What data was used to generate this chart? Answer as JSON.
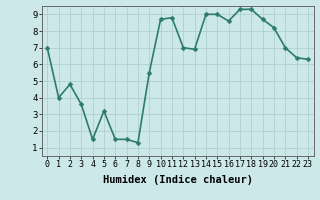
{
  "x": [
    0,
    1,
    2,
    3,
    4,
    5,
    6,
    7,
    8,
    9,
    10,
    11,
    12,
    13,
    14,
    15,
    16,
    17,
    18,
    19,
    20,
    21,
    22,
    23
  ],
  "y": [
    7.0,
    4.0,
    4.8,
    3.6,
    1.5,
    3.2,
    1.5,
    1.5,
    1.3,
    5.5,
    8.7,
    8.8,
    7.0,
    6.9,
    9.0,
    9.0,
    8.6,
    9.3,
    9.3,
    8.7,
    8.2,
    7.0,
    6.4,
    6.3
  ],
  "line_color": "#2d7b6e",
  "marker_color": "#2d7b6e",
  "bg_color": "#cce8e8",
  "grid_color": "#aacccc",
  "xlabel": "Humidex (Indice chaleur)",
  "xlabel_fontsize": 7.5,
  "xlim": [
    -0.5,
    23.5
  ],
  "ylim": [
    0.5,
    9.5
  ],
  "yticks": [
    1,
    2,
    3,
    4,
    5,
    6,
    7,
    8,
    9
  ],
  "xticks": [
    0,
    1,
    2,
    3,
    4,
    5,
    6,
    7,
    8,
    9,
    10,
    11,
    12,
    13,
    14,
    15,
    16,
    17,
    18,
    19,
    20,
    21,
    22,
    23
  ],
  "xtick_labels": [
    "0",
    "1",
    "2",
    "3",
    "4",
    "5",
    "6",
    "7",
    "8",
    "9",
    "10",
    "11",
    "12",
    "13",
    "14",
    "15",
    "16",
    "17",
    "18",
    "19",
    "20",
    "21",
    "22",
    "23"
  ],
  "line_width": 1.2,
  "marker_size": 2.5,
  "tick_fontsize": 6.0,
  "ylabel_fontsize": 6.5
}
